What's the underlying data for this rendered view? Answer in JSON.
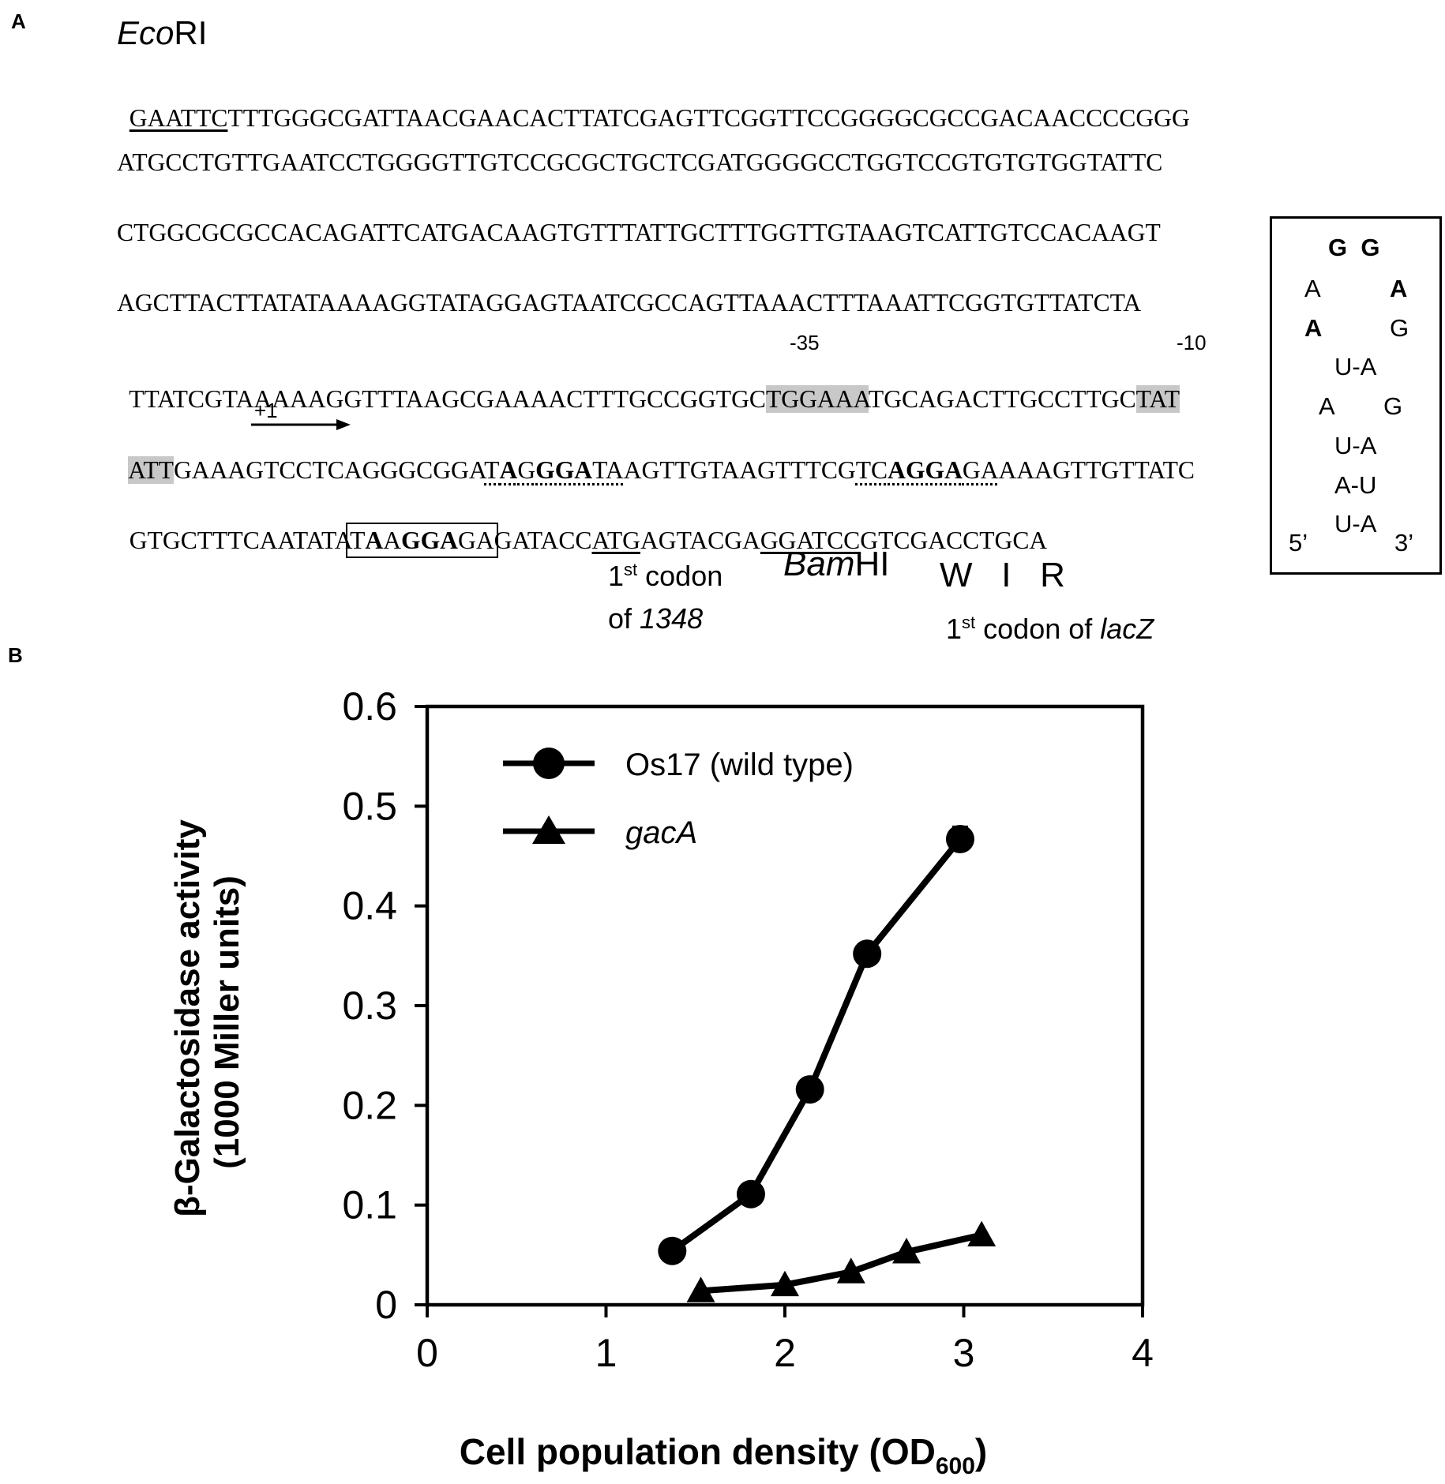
{
  "panel_a": {
    "label": "A",
    "ecori": {
      "ital": "Eco",
      "rest": "RI"
    },
    "line1": {
      "site": "GAATTC",
      "rest": "TTTGGGCGATTAACGAACACTTATCGAGTTCGGTTCCGGGGCGCCGACAACCCCGGG"
    },
    "line2": "ATGCCTGTTGAATCCTGGGGTTGTCCGCGCTGCTCGATGGGGCCTGGTCCGTGTGTGGTATTC",
    "line3": "CTGGCGCGCCACAGATTCATGACAAGTGTTTATTGCTTTGGTTGTAAGTCATTGTCCACAAGT",
    "line4": "AGCTTACTTATATAAAAGGTATAGGAGTAATCGCCAGTTAAACTTTAAATTCGGTGTTATCTA",
    "line5": {
      "a": "TTATCGTAAAAAGGTTTAAGCGAAAACTTTGCCGGTGC",
      "box35": "TGGAAA",
      "b": "TGCAGACTTGCCTTGC",
      "box10": "TAT"
    },
    "m35": "-35",
    "m10": "-10",
    "plus1": "+1",
    "line6": {
      "hl": "ATT",
      "a": "GAAAGTCCTCAGGGCGGA",
      "s1a": "T",
      "s1b": "A",
      "s1c": "G",
      "s1d": "GGA",
      "s1e": "TA",
      "b": "AGTTGTAAGTTTCG",
      "s2a": "TC",
      "s2b": "AGGA",
      "s2c": "GA",
      "c": "AAAGTTGTTATC"
    },
    "line7": {
      "a": "GTGCTTTCAATATA",
      "box1": "T",
      "box2": "A",
      "box3": "A",
      "box4": "GGA",
      "box5": "GA",
      "b": "GATACC",
      "atg": "ATG",
      "c": "AGTACGA",
      "bam": "GGATCC",
      "d": "GTCGACCTGCA"
    },
    "codon1348": {
      "num": "1",
      "sup": "st",
      "rest": " codon",
      "line2a": "of ",
      "gene": "1348"
    },
    "bamhi": {
      "ital": "Bam",
      "rest": "HI"
    },
    "wir": "W   I   R",
    "lacz": {
      "num": "1",
      "sup": "st",
      "rest": " codon of ",
      "gene": "lacZ"
    },
    "hairpin": {
      "gg": "G  G",
      "r1l": "A",
      "r1r": "A",
      "r2l": "A",
      "r2r": "G",
      "p1": "U-A",
      "r3l": "A",
      "r3r": "G",
      "p2": "U-A",
      "p3": "A-U",
      "p4": "U-A",
      "five": "5’",
      "three": "3’"
    }
  },
  "panel_b": {
    "label": "B"
  },
  "chart_data": {
    "type": "line",
    "xlabel": "Cell population density (OD",
    "xlabel_sub": "600",
    "xlabel_end": ")",
    "ylabel_line1": "β-Galactosidase activity",
    "ylabel_line2": "(1000 Miller units)",
    "xlim": [
      0,
      4
    ],
    "ylim": [
      0,
      0.6
    ],
    "xticks": [
      "0",
      "1",
      "2",
      "3",
      "4"
    ],
    "yticks": [
      "0",
      "0.1",
      "0.2",
      "0.3",
      "0.4",
      "0.5",
      "0.6"
    ],
    "legend_position": "top-left",
    "series": [
      {
        "name": "Os17 (wild type)",
        "marker": "circle",
        "italic": false,
        "x": [
          1.37,
          1.81,
          2.14,
          2.46,
          2.98
        ],
        "y": [
          0.054,
          0.111,
          0.216,
          0.352,
          0.467
        ],
        "err": [
          0,
          0,
          0,
          0,
          0.012
        ]
      },
      {
        "name": "gacA",
        "marker": "triangle",
        "italic": true,
        "x": [
          1.53,
          2.0,
          2.37,
          2.68,
          3.1
        ],
        "y": [
          0.014,
          0.02,
          0.033,
          0.053,
          0.07
        ],
        "err": [
          0,
          0,
          0,
          0,
          0
        ]
      }
    ]
  }
}
